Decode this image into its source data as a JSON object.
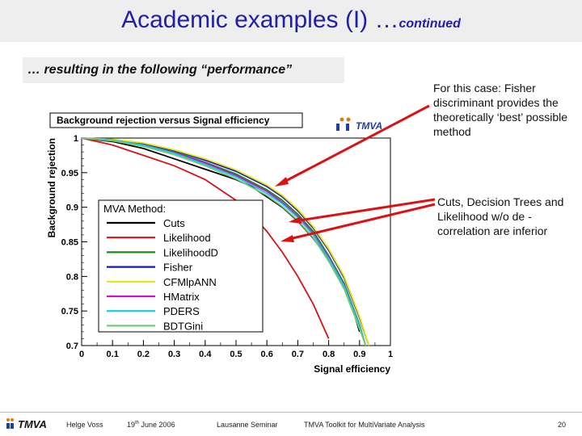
{
  "slide": {
    "title_main": "Academic examples (I) …",
    "title_sub": "continued",
    "subtitle": "… resulting in the following “performance”",
    "note1": "For this case: Fisher discriminant provides the theoretically ‘best’ possible method",
    "note2": "Cuts, Decision Trees and Likelihood w/o de -correlation are inferior"
  },
  "footer": {
    "logo": "TMVA",
    "author": "Helge Voss",
    "date_day": "19",
    "date_sup": "th",
    "date_rest": " June 2006",
    "venue": "Lausanne Seminar",
    "talk": "TMVA Toolkit for MultiVariate Analysis",
    "page": "20"
  },
  "colors": {
    "title": "#1f1faa",
    "arrows": "#dd1111"
  },
  "chart_data": {
    "type": "line",
    "title": "Background rejection versus Signal efficiency",
    "xlabel": "Signal efficiency",
    "ylabel": "Background rejection",
    "xlim": [
      0,
      1
    ],
    "ylim": [
      0.7,
      1
    ],
    "xticks": [
      "0",
      "0.1",
      "0.2",
      "0.3",
      "0.4",
      "0.5",
      "0.6",
      "0.7",
      "0.8",
      "0.9",
      "1"
    ],
    "yticks": [
      "0.7",
      "0.75",
      "0.8",
      "0.85",
      "0.9",
      "0.95",
      "1"
    ],
    "logo_text": "TMVA",
    "legend_title": "MVA Method:",
    "legend_position": "left",
    "series": [
      {
        "name": "Cuts",
        "color": "#000000",
        "x": [
          0,
          0.1,
          0.2,
          0.3,
          0.4,
          0.5,
          0.55,
          0.6,
          0.65,
          0.7,
          0.75,
          0.8,
          0.85,
          0.88,
          0.9
        ],
        "y": [
          1,
          0.995,
          0.985,
          0.97,
          0.955,
          0.94,
          0.93,
          0.915,
          0.9,
          0.88,
          0.855,
          0.825,
          0.785,
          0.75,
          0.72
        ]
      },
      {
        "name": "Likelihood",
        "color": "#d21414",
        "x": [
          0,
          0.1,
          0.2,
          0.3,
          0.35,
          0.4,
          0.45,
          0.5,
          0.55,
          0.6,
          0.65,
          0.7,
          0.75,
          0.8
        ],
        "y": [
          1,
          0.99,
          0.975,
          0.96,
          0.95,
          0.94,
          0.925,
          0.91,
          0.89,
          0.865,
          0.835,
          0.8,
          0.76,
          0.71
        ]
      },
      {
        "name": "LikelihoodD",
        "color": "#1a8a1a",
        "x": [
          0,
          0.1,
          0.2,
          0.3,
          0.4,
          0.5,
          0.6,
          0.65,
          0.7,
          0.75,
          0.8,
          0.85,
          0.9,
          0.92
        ],
        "y": [
          1,
          0.997,
          0.99,
          0.98,
          0.965,
          0.948,
          0.925,
          0.91,
          0.89,
          0.865,
          0.83,
          0.79,
          0.73,
          0.7
        ]
      },
      {
        "name": "Fisher",
        "color": "#1414c8",
        "x": [
          0,
          0.1,
          0.2,
          0.3,
          0.4,
          0.5,
          0.6,
          0.65,
          0.7,
          0.75,
          0.8,
          0.85,
          0.9,
          0.93
        ],
        "y": [
          1,
          0.998,
          0.992,
          0.982,
          0.968,
          0.952,
          0.93,
          0.915,
          0.895,
          0.87,
          0.838,
          0.798,
          0.74,
          0.7
        ]
      },
      {
        "name": "CFMlpANN",
        "color": "#e6e600",
        "x": [
          0,
          0.1,
          0.2,
          0.3,
          0.4,
          0.5,
          0.6,
          0.65,
          0.7,
          0.75,
          0.8,
          0.85,
          0.9,
          0.93
        ],
        "y": [
          1,
          0.998,
          0.993,
          0.983,
          0.97,
          0.954,
          0.932,
          0.917,
          0.897,
          0.872,
          0.84,
          0.8,
          0.742,
          0.7
        ]
      },
      {
        "name": "HMatrix",
        "color": "#c814c8",
        "x": [
          0,
          0.1,
          0.2,
          0.3,
          0.4,
          0.5,
          0.6,
          0.65,
          0.7,
          0.75,
          0.8,
          0.85,
          0.9,
          0.92
        ],
        "y": [
          1,
          0.997,
          0.99,
          0.979,
          0.964,
          0.946,
          0.923,
          0.907,
          0.887,
          0.862,
          0.828,
          0.787,
          0.728,
          0.7
        ]
      },
      {
        "name": "PDERS",
        "color": "#14c8e6",
        "x": [
          0,
          0.1,
          0.2,
          0.3,
          0.4,
          0.5,
          0.6,
          0.65,
          0.7,
          0.75,
          0.8,
          0.85,
          0.9,
          0.92
        ],
        "y": [
          1,
          0.997,
          0.99,
          0.978,
          0.962,
          0.944,
          0.92,
          0.905,
          0.885,
          0.86,
          0.826,
          0.786,
          0.728,
          0.7
        ]
      },
      {
        "name": "BDTGini",
        "color": "#78c878",
        "x": [
          0,
          0.1,
          0.2,
          0.3,
          0.4,
          0.5,
          0.6,
          0.65,
          0.7,
          0.75,
          0.8,
          0.85,
          0.9,
          0.92
        ],
        "y": [
          1,
          0.996,
          0.988,
          0.976,
          0.96,
          0.941,
          0.917,
          0.901,
          0.881,
          0.856,
          0.822,
          0.782,
          0.724,
          0.7
        ]
      }
    ]
  }
}
